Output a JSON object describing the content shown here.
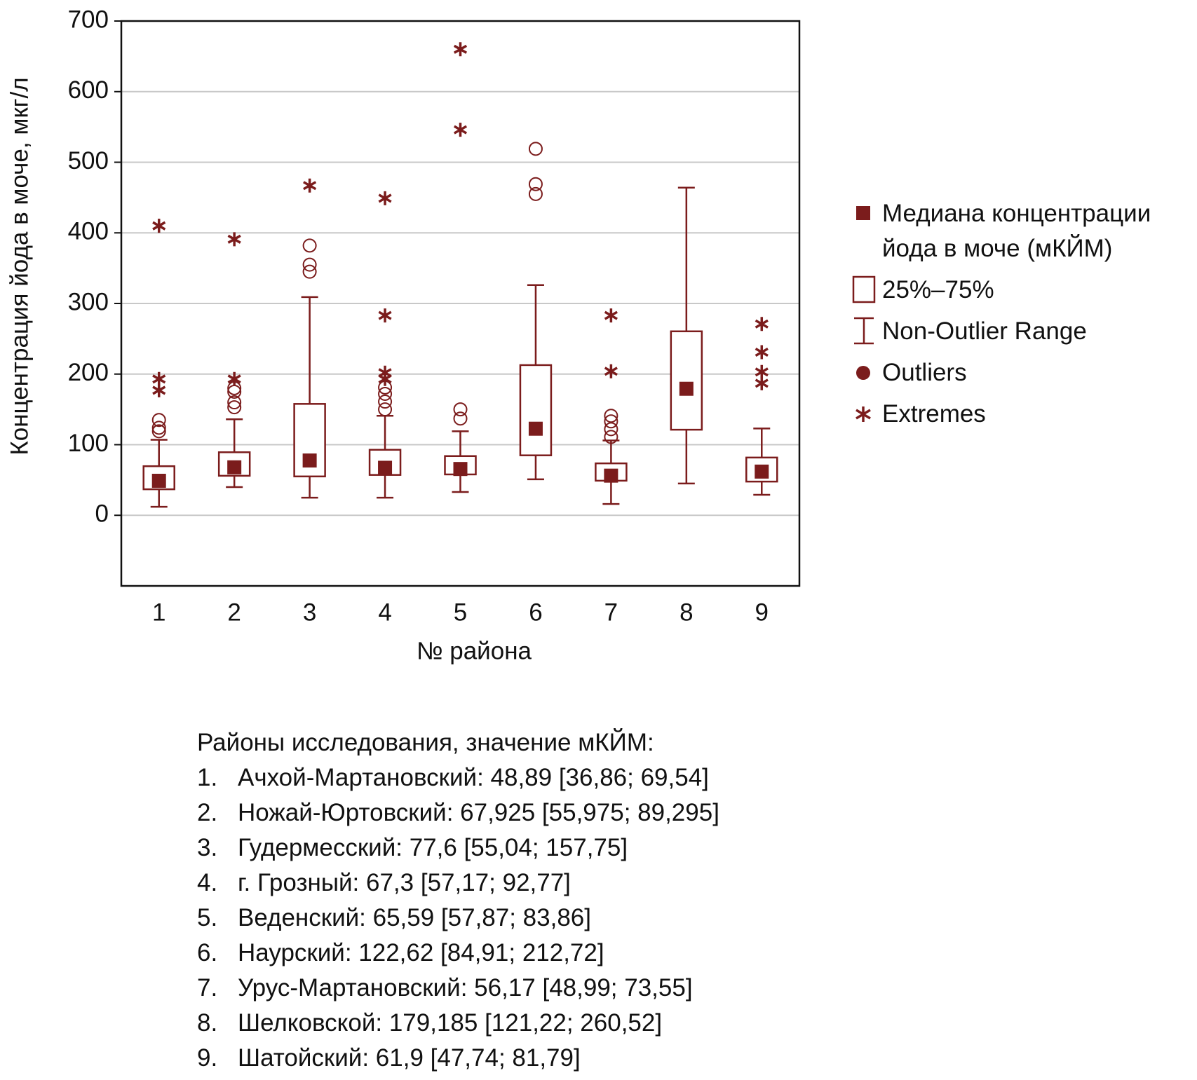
{
  "chart_data": {
    "type": "boxplot",
    "y_label": "Концентрация йода в моче, мкг/л",
    "x_label": "№ района",
    "categories": [
      "1",
      "2",
      "3",
      "4",
      "5",
      "6",
      "7",
      "8",
      "9"
    ],
    "median": [
      48.89,
      67.925,
      77.6,
      67.3,
      65.59,
      122.62,
      56.17,
      179.185,
      61.9
    ],
    "q1": [
      36.86,
      55.975,
      55.04,
      57.17,
      57.87,
      84.91,
      48.99,
      121.22,
      47.74
    ],
    "q3": [
      69.54,
      89.295,
      157.75,
      92.77,
      83.86,
      212.72,
      73.55,
      260.52,
      81.79
    ],
    "whisker_low": [
      12,
      40,
      25,
      25,
      33,
      51,
      16,
      45,
      29
    ],
    "whisker_high": [
      107,
      136,
      309,
      141,
      119,
      326,
      106,
      464,
      123
    ],
    "outliers": [
      [
        135,
        124,
        119
      ],
      [
        180,
        175,
        160,
        153
      ],
      [
        382,
        355,
        345
      ],
      [
        181,
        172,
        161,
        150
      ],
      [
        150,
        137
      ],
      [
        519,
        469,
        455
      ],
      [
        141,
        133,
        122,
        111
      ],
      [],
      []
    ],
    "extremes": [
      [
        410,
        193,
        177
      ],
      [
        391,
        193
      ],
      [
        467
      ],
      [
        449,
        283,
        202,
        193
      ],
      [
        660,
        546
      ],
      [],
      [
        283,
        204
      ],
      [],
      [
        271,
        231,
        203,
        187
      ]
    ],
    "color": "#7b1c1c",
    "ylim": [
      -100,
      700
    ],
    "yticks": [
      0,
      100,
      200,
      300,
      400,
      500,
      600,
      700
    ],
    "grid": true,
    "legend": {
      "position": "right",
      "median": "Медиана концентрации йода в моче (мКЙМ)",
      "box": "25%–75%",
      "whisker": "Non-Outlier Range",
      "outliers": "Outliers",
      "extremes": "Extremes"
    }
  },
  "notes": {
    "title": "Районы исследования, значение мКЙМ:",
    "items": [
      {
        "number": "1.",
        "text": "Ачхой-Мартановский: 48,89 [36,86; 69,54]"
      },
      {
        "number": "2.",
        "text": "Ножай-Юртовский: 67,925 [55,975; 89,295]"
      },
      {
        "number": "3.",
        "text": "Гудермесский: 77,6 [55,04; 157,75]"
      },
      {
        "number": "4.",
        "text": "г. Грозный: 67,3 [57,17; 92,77]"
      },
      {
        "number": "5.",
        "text": "Веденский: 65,59 [57,87; 83,86]"
      },
      {
        "number": "6.",
        "text": "Наурский: 122,62 [84,91; 212,72]"
      },
      {
        "number": "7.",
        "text": "Урус-Мартановский: 56,17 [48,99; 73,55]"
      },
      {
        "number": "8.",
        "text": "Шелковской: 179,185 [121,22; 260,52]"
      },
      {
        "number": "9.",
        "text": "Шатойский: 61,9 [47,74; 81,79]"
      }
    ]
  }
}
